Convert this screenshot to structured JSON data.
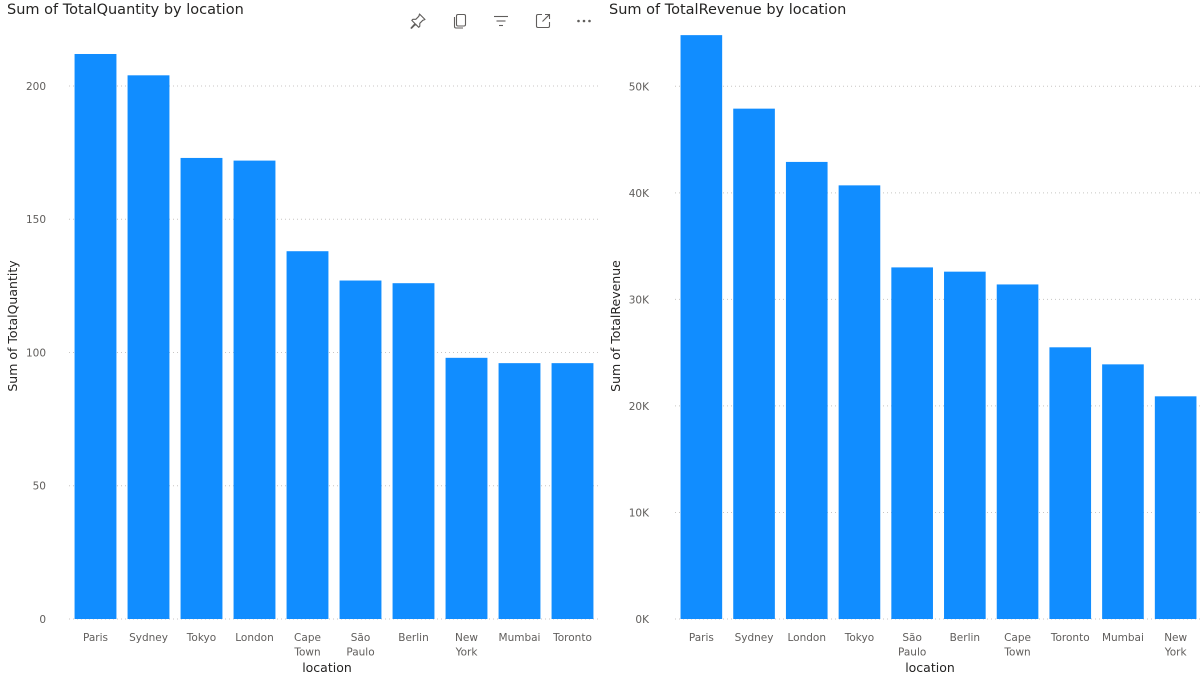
{
  "chart_data": [
    {
      "type": "bar",
      "title": "Sum of TotalQuantity by location",
      "xlabel": "location",
      "ylabel": "Sum of TotalQuantity",
      "categories": [
        "Paris",
        "Sydney",
        "Tokyo",
        "London",
        "Cape Town",
        "São Paulo",
        "Berlin",
        "New York",
        "Mumbai",
        "Toronto"
      ],
      "values": [
        212,
        204,
        173,
        172,
        138,
        127,
        126,
        98,
        96,
        96
      ],
      "ylim": [
        0,
        215
      ],
      "yticks": [
        0,
        50,
        100,
        150,
        200
      ],
      "ytick_labels": [
        "0",
        "50",
        "100",
        "150",
        "200"
      ],
      "grid": true,
      "bar_color": "#118dff"
    },
    {
      "type": "bar",
      "title": "Sum of TotalRevenue by location",
      "xlabel": "location",
      "ylabel": "Sum of TotalRevenue",
      "categories": [
        "Paris",
        "Sydney",
        "London",
        "Tokyo",
        "São Paulo",
        "Berlin",
        "Cape Town",
        "Toronto",
        "Mumbai",
        "New York"
      ],
      "values": [
        54800,
        47900,
        42900,
        40700,
        33000,
        32600,
        31400,
        25500,
        23900,
        20900
      ],
      "ylim": [
        0,
        55000
      ],
      "yticks": [
        0,
        10000,
        20000,
        30000,
        40000,
        50000
      ],
      "ytick_labels": [
        "0K",
        "10K",
        "20K",
        "30K",
        "40K",
        "50K"
      ],
      "grid": true,
      "bar_color": "#118dff"
    }
  ],
  "toolbar": {
    "icons": [
      "pin-icon",
      "copy-icon",
      "filter-icon",
      "focus-mode-icon",
      "more-options-icon"
    ],
    "icon_color": "#605e5c"
  }
}
